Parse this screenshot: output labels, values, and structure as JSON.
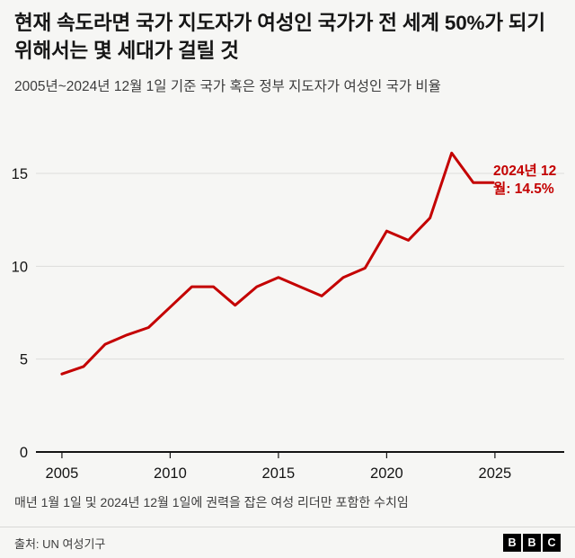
{
  "header": {
    "title": "현재 속도라면 국가 지도자가 여성인 국가가 전 세계 50%가 되기 위해서는 몇 세대가 걸릴 것",
    "subtitle": "2005년~2024년 12월 1일 기준 국가 혹은 정부 지도자가 여성인 국가 비율"
  },
  "chart_data": {
    "type": "line",
    "title": "현재 속도라면 국가 지도자가 여성인 국가가 전 세계 50%가 되기 위해서는 몇 세대가 걸릴 것",
    "subtitle": "2005년~2024년 12월 1일 기준 국가 혹은 정부 지도자가 여성인 국가 비율",
    "xlabel": "",
    "ylabel": "",
    "x": [
      2005,
      2006,
      2007,
      2008,
      2009,
      2010,
      2011,
      2012,
      2013,
      2014,
      2015,
      2016,
      2017,
      2018,
      2019,
      2020,
      2021,
      2022,
      2023,
      2024,
      2024.92
    ],
    "values": [
      4.2,
      4.6,
      5.8,
      6.3,
      6.7,
      7.8,
      8.9,
      8.9,
      7.9,
      8.9,
      9.4,
      8.9,
      8.4,
      9.4,
      9.9,
      11.9,
      11.4,
      12.6,
      16.1,
      14.5,
      14.5
    ],
    "yticks": [
      0,
      5,
      10,
      15
    ],
    "xticks": [
      2005,
      2010,
      2015,
      2020,
      2025
    ],
    "ylim": [
      0,
      17.2
    ],
    "xlim": [
      2003.8,
      2028.2
    ],
    "grid": "horizontal",
    "legend": "none",
    "line_color": "#c40000",
    "annotation": {
      "text": "2024년 12월: 14.5%",
      "x": 2024.92,
      "y": 14.5,
      "color": "#c40000"
    }
  },
  "footer": {
    "note": "매년 1월 1일 및 2024년 12월 1일에 권력을 잡은 여성 리더만 포함한 수치임",
    "source": "출처: UN  여성기구",
    "logo_letters": [
      "B",
      "B",
      "C"
    ]
  }
}
